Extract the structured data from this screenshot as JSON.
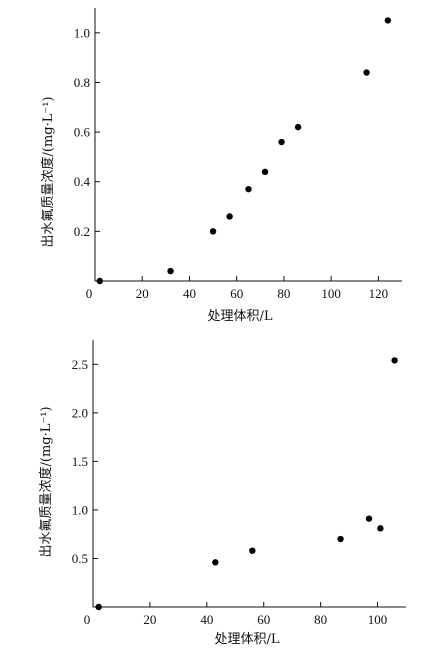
{
  "chart_data": [
    {
      "type": "scatter",
      "title": "",
      "xlabel": "处理体积/L",
      "ylabel": "出水氟质量浓度/(mg·L⁻¹)",
      "xlim": [
        0,
        130
      ],
      "ylim": [
        0,
        1.1
      ],
      "x_ticks": [
        0,
        20,
        40,
        60,
        80,
        100,
        120
      ],
      "y_ticks": [
        0.2,
        0.4,
        0.6,
        0.8,
        1.0
      ],
      "x_tick_labels": [
        "0",
        "20",
        "40",
        "60",
        "80",
        "100",
        "120"
      ],
      "y_tick_labels": [
        "0.2",
        "0.4",
        "0.6",
        "0.8",
        "1.0"
      ],
      "grid": false,
      "x": [
        2,
        32,
        50,
        57,
        65,
        72,
        79,
        86,
        115,
        124
      ],
      "y": [
        0.0,
        0.04,
        0.2,
        0.26,
        0.37,
        0.44,
        0.56,
        0.62,
        0.84,
        1.05
      ]
    },
    {
      "type": "scatter",
      "title": "",
      "xlabel": "处理体积/L",
      "ylabel": "出水氟质量浓度/(mg·L⁻¹)",
      "xlim": [
        0,
        110
      ],
      "ylim": [
        0,
        2.75
      ],
      "x_ticks": [
        0,
        20,
        40,
        60,
        80,
        100
      ],
      "y_ticks": [
        0.5,
        1.0,
        1.5,
        2.0,
        2.5
      ],
      "x_tick_labels": [
        "0",
        "20",
        "40",
        "60",
        "80",
        "100"
      ],
      "y_tick_labels": [
        "0.5",
        "1.0",
        "1.5",
        "2.0",
        "2.5"
      ],
      "grid": false,
      "x": [
        2,
        43,
        56,
        87,
        97,
        101,
        106
      ],
      "y": [
        0.0,
        0.46,
        0.58,
        0.7,
        0.91,
        0.81,
        2.54
      ]
    }
  ]
}
